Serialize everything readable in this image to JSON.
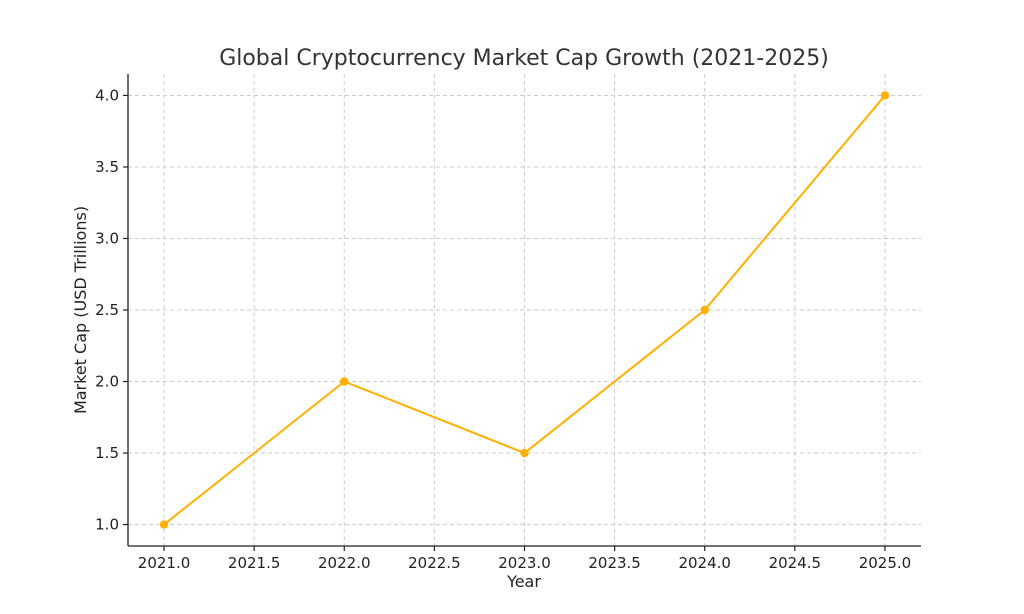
{
  "chart_data": {
    "type": "line",
    "title": "Global Cryptocurrency Market Cap Growth (2021-2025)",
    "xlabel": "Year",
    "ylabel": "Market Cap (USD Trillions)",
    "x": [
      2021,
      2022,
      2023,
      2024,
      2025
    ],
    "series": [
      {
        "values": [
          1.0,
          2.0,
          1.5,
          2.5,
          4.0
        ],
        "color": "#FFB000",
        "marker": "circle"
      }
    ],
    "xlim": [
      2020.8,
      2025.2
    ],
    "ylim": [
      0.85,
      4.15
    ],
    "xticks": [
      "2021.0",
      "2021.5",
      "2022.0",
      "2022.5",
      "2023.0",
      "2023.5",
      "2024.0",
      "2024.5",
      "2025.0"
    ],
    "yticks": [
      "1.0",
      "1.5",
      "2.0",
      "2.5",
      "3.0",
      "3.5",
      "4.0"
    ],
    "grid": true,
    "legend": "none"
  }
}
